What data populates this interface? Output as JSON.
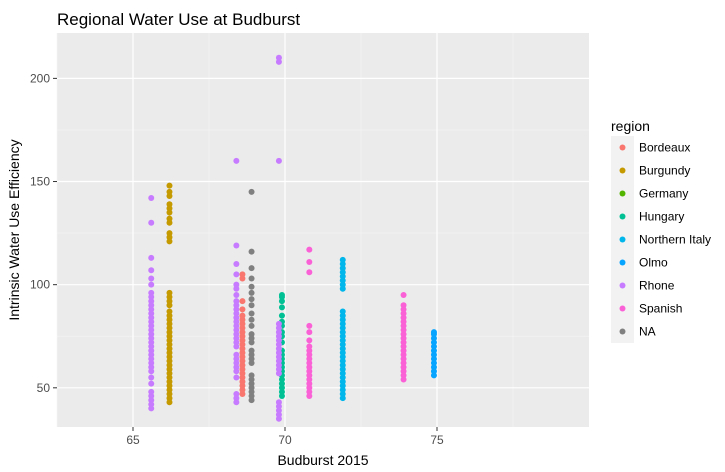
{
  "chart_data": {
    "type": "scatter",
    "title": "Regional Water Use at Budburst",
    "xlabel": "Budburst 2015",
    "ylabel": "Intrinsic Water Use Efficiency",
    "xlim": [
      62.5,
      80.0
    ],
    "ylim": [
      31,
      222
    ],
    "x_ticks": [
      65,
      70,
      75
    ],
    "y_ticks": [
      50,
      100,
      150,
      200
    ],
    "grid": true,
    "legend": {
      "title": "region",
      "placement": "right"
    },
    "series": [
      {
        "name": "Bordeaux",
        "color": "#F8766D",
        "x": [
          68.6,
          68.6,
          68.6,
          68.6,
          68.6,
          68.6,
          68.6,
          68.6,
          68.6,
          68.6,
          68.6,
          68.6,
          68.6,
          68.6,
          68.6,
          68.6,
          68.6,
          68.6,
          68.6,
          68.6,
          68.6,
          68.6,
          68.6,
          68.6
        ],
        "y": [
          47,
          49,
          51,
          53,
          55,
          57,
          59,
          61,
          63,
          65,
          67,
          69,
          71,
          73,
          75,
          77,
          79,
          81,
          83,
          85,
          88,
          92,
          103,
          105
        ]
      },
      {
        "name": "Burgundy",
        "color": "#C49A00",
        "x": [
          66.2,
          66.2,
          66.2,
          66.2,
          66.2,
          66.2,
          66.2,
          66.2,
          66.2,
          66.2,
          66.2,
          66.2,
          66.2,
          66.2,
          66.2,
          66.2,
          66.2,
          66.2,
          66.2,
          66.2,
          66.2,
          66.2,
          66.2,
          66.2,
          66.2,
          66.2,
          66.2,
          66.2,
          66.2,
          66.2,
          66.2,
          66.2,
          66.2,
          66.2,
          66.2,
          66.2,
          66.2,
          66.2
        ],
        "y": [
          43,
          45,
          47,
          49,
          51,
          53,
          55,
          57,
          59,
          61,
          63,
          65,
          67,
          69,
          71,
          73,
          75,
          77,
          79,
          81,
          83,
          85,
          87,
          90,
          92,
          94,
          96,
          121,
          123,
          125,
          132,
          135,
          137,
          139,
          143,
          148,
          145,
          130
        ]
      },
      {
        "name": "Germany",
        "color": "#53B400",
        "x": [],
        "y": []
      },
      {
        "name": "Hungary",
        "color": "#00C094",
        "x": [
          69.9,
          69.9,
          69.9,
          69.9,
          69.9,
          69.9,
          69.9,
          69.9,
          69.9,
          69.9,
          69.9,
          69.9,
          69.9,
          69.9,
          69.9,
          69.9,
          69.9,
          69.9,
          69.9,
          69.9,
          69.9,
          69.9
        ],
        "y": [
          46,
          48,
          50,
          52,
          54,
          56,
          58,
          60,
          62,
          64,
          66,
          68,
          72,
          75,
          77,
          80,
          85,
          89,
          92,
          94,
          95,
          82
        ]
      },
      {
        "name": "Northern Italy",
        "color": "#00B6EB",
        "x": [
          71.9,
          71.9,
          71.9,
          71.9,
          71.9,
          71.9,
          71.9,
          71.9,
          71.9,
          71.9,
          71.9,
          71.9,
          71.9,
          71.9,
          71.9,
          71.9,
          71.9,
          71.9,
          71.9,
          71.9,
          71.9,
          71.9,
          71.9,
          71.9,
          71.9,
          71.9,
          71.9,
          71.9,
          71.9,
          71.9
        ],
        "y": [
          45,
          47,
          49,
          51,
          53,
          55,
          57,
          59,
          61,
          63,
          65,
          67,
          69,
          71,
          73,
          75,
          77,
          79,
          81,
          83,
          85,
          87,
          98,
          100,
          102,
          104,
          106,
          108,
          110,
          112
        ]
      },
      {
        "name": "Olmo",
        "color": "#06A4FF",
        "x": [
          74.9,
          74.9,
          74.9,
          74.9,
          74.9,
          74.9,
          74.9,
          74.9,
          74.9,
          74.9,
          74.9,
          74.9
        ],
        "y": [
          56,
          58,
          60,
          62,
          64,
          66,
          68,
          70,
          72,
          74,
          76,
          77
        ]
      },
      {
        "name": "Rhone",
        "color": "#C77CFF",
        "x": [
          65.6,
          65.6,
          65.6,
          65.6,
          65.6,
          65.6,
          65.6,
          65.6,
          65.6,
          65.6,
          65.6,
          65.6,
          65.6,
          65.6,
          65.6,
          65.6,
          65.6,
          65.6,
          65.6,
          65.6,
          65.6,
          65.6,
          65.6,
          65.6,
          65.6,
          65.6,
          65.6,
          65.6,
          65.6,
          65.6,
          65.6,
          65.6,
          65.6,
          68.4,
          68.4,
          68.4,
          68.4,
          68.4,
          68.4,
          68.4,
          68.4,
          68.4,
          68.4,
          68.4,
          68.4,
          68.4,
          68.4,
          68.4,
          68.4,
          68.4,
          68.4,
          68.4,
          68.4,
          68.4,
          68.4,
          68.4,
          68.4,
          68.4,
          68.4,
          68.4,
          68.4,
          69.8,
          69.8,
          69.8,
          69.8,
          69.8,
          69.8,
          69.8,
          69.8,
          69.8,
          69.8,
          69.8,
          69.8,
          69.8,
          69.8,
          69.8,
          69.8,
          69.8,
          69.8,
          69.8,
          69.8,
          69.8
        ],
        "y": [
          40,
          42,
          44,
          46,
          48,
          52,
          55,
          58,
          60,
          62,
          64,
          66,
          68,
          70,
          72,
          74,
          76,
          78,
          80,
          82,
          84,
          86,
          88,
          90,
          92,
          94,
          96,
          100,
          103,
          107,
          113,
          130,
          142,
          160,
          43,
          45,
          47,
          55,
          58,
          60,
          62,
          64,
          66,
          70,
          72,
          74,
          76,
          78,
          80,
          82,
          84,
          86,
          88,
          90,
          92,
          95,
          98,
          100,
          105,
          110,
          119,
          35,
          37,
          39,
          41,
          43,
          57,
          59,
          61,
          63,
          65,
          67,
          69,
          71,
          73,
          75,
          77,
          79,
          81,
          160,
          208,
          210
        ],
        "note": ""
      },
      {
        "name": "Spanish",
        "color": "#FB61D7",
        "x": [
          70.8,
          70.8,
          70.8,
          70.8,
          70.8,
          70.8,
          70.8,
          70.8,
          70.8,
          70.8,
          70.8,
          70.8,
          70.8,
          70.8,
          70.8,
          70.8,
          70.8,
          70.8,
          70.8,
          73.9,
          73.9,
          73.9,
          73.9,
          73.9,
          73.9,
          73.9,
          73.9,
          73.9,
          73.9,
          73.9,
          73.9,
          73.9,
          73.9,
          73.9,
          73.9,
          73.9,
          73.9,
          73.9,
          73.9
        ],
        "y": [
          46,
          48,
          50,
          52,
          54,
          56,
          58,
          60,
          62,
          64,
          66,
          68,
          70,
          73,
          77,
          80,
          106,
          111,
          117,
          54,
          56,
          58,
          60,
          62,
          64,
          66,
          68,
          70,
          72,
          74,
          76,
          78,
          80,
          82,
          84,
          86,
          88,
          90,
          95
        ]
      },
      {
        "name": "NA",
        "color": "#808080",
        "x": [
          68.9,
          68.9,
          68.9,
          68.9,
          68.9,
          68.9,
          68.9,
          68.9,
          68.9,
          68.9,
          68.9,
          68.9,
          68.9,
          68.9,
          68.9,
          68.9,
          68.9,
          68.9,
          68.9,
          68.9,
          68.9,
          68.9,
          68.9,
          68.9,
          68.9
        ],
        "y": [
          44,
          46,
          48,
          50,
          52,
          54,
          56,
          62,
          64,
          66,
          68,
          72,
          74,
          76,
          80,
          83,
          86,
          90,
          93,
          96,
          99,
          103,
          108,
          116,
          145
        ]
      }
    ]
  }
}
